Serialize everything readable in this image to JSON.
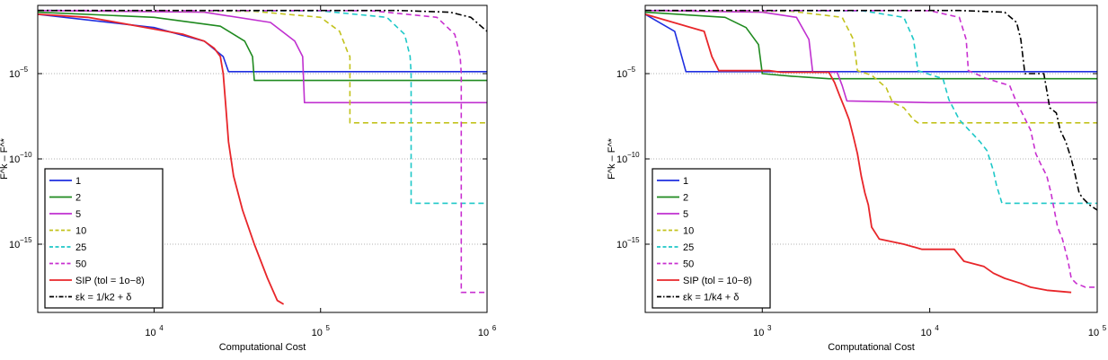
{
  "colors": {
    "s1": "#1f2fe0",
    "s2": "#1f8a1f",
    "s5": "#c030d0",
    "s10": "#c2c21c",
    "s25": "#1ec8c8",
    "s50": "#c830d0",
    "sip": "#e8262a",
    "eps": "#000000"
  },
  "chart_data": [
    {
      "type": "line",
      "xlabel": "Computational Cost",
      "ylabel": "F^k – F^*",
      "xscale": "log",
      "yscale": "log",
      "xlim": [
        2000,
        1000000
      ],
      "ylim": [
        1e-19,
        0.1
      ],
      "xticks": [
        {
          "label": "10",
          "exp": "4",
          "value": 10000
        },
        {
          "label": "10",
          "exp": "5",
          "value": 100000
        },
        {
          "label": "10",
          "exp": "6",
          "value": 1000000
        }
      ],
      "yticks": [
        {
          "label": "10",
          "exp": "−5",
          "value": 1e-05
        },
        {
          "label": "10",
          "exp": "−10",
          "value": 1e-10
        },
        {
          "label": "10",
          "exp": "−15",
          "value": 1e-15
        }
      ],
      "grid": "horizontal dotted",
      "legend_position": "bottom-left",
      "legend": [
        "1",
        "2",
        "5",
        "10",
        "25",
        "50",
        "SIP (tol = 1o−8)",
        "εk = 1/k2 + δ"
      ],
      "series": [
        {
          "name": "1",
          "style": "solid",
          "points": [
            [
              2000,
              0.03
            ],
            [
              10000,
              0.005
            ],
            [
              20000,
              0.0008
            ],
            [
              26000,
              0.0001
            ],
            [
              28000,
              1.3e-05
            ],
            [
              1000000,
              1.3e-05
            ]
          ]
        },
        {
          "name": "2",
          "style": "solid",
          "points": [
            [
              2000,
              0.04
            ],
            [
              10000,
              0.02
            ],
            [
              25000,
              0.006
            ],
            [
              35000,
              0.0008
            ],
            [
              39000,
              0.0001
            ],
            [
              40000,
              4e-06
            ],
            [
              1000000,
              4e-06
            ]
          ]
        },
        {
          "name": "5",
          "style": "solid",
          "points": [
            [
              2000,
              0.05
            ],
            [
              20000,
              0.04
            ],
            [
              50000,
              0.01
            ],
            [
              70000,
              0.0008
            ],
            [
              78000,
              0.0001
            ],
            [
              80000,
              2e-07
            ],
            [
              1000000,
              2e-07
            ]
          ]
        },
        {
          "name": "10",
          "style": "dashed",
          "points": [
            [
              2000,
              0.05
            ],
            [
              40000,
              0.045
            ],
            [
              100000,
              0.02
            ],
            [
              130000,
              0.003
            ],
            [
              145000,
              0.0002
            ],
            [
              150000,
              0.0001
            ],
            [
              150000,
              1.3e-08
            ],
            [
              1000000,
              1.3e-08
            ]
          ]
        },
        {
          "name": "25",
          "style": "dashed",
          "points": [
            [
              2000,
              0.05
            ],
            [
              100000,
              0.048
            ],
            [
              250000,
              0.02
            ],
            [
              320000,
              0.002
            ],
            [
              345000,
              0.0001
            ],
            [
              350000,
              1e-05
            ],
            [
              350000,
              2.5e-13
            ],
            [
              1000000,
              2.5e-13
            ]
          ]
        },
        {
          "name": "50",
          "style": "dashed",
          "points": [
            [
              2000,
              0.05
            ],
            [
              200000,
              0.049
            ],
            [
              500000,
              0.02
            ],
            [
              640000,
              0.002
            ],
            [
              690000,
              0.0001
            ],
            [
              700000,
              1e-05
            ],
            [
              700000,
              1.5e-18
            ],
            [
              1000000,
              1.5e-18
            ]
          ]
        },
        {
          "name": "SIP (tol = 1o−8)",
          "style": "solid",
          "points": [
            [
              2000,
              0.03
            ],
            [
              4000,
              0.02
            ],
            [
              6000,
              0.01
            ],
            [
              15000,
              0.002
            ],
            [
              20000,
              0.0008
            ],
            [
              23000,
              0.0003
            ],
            [
              25000,
              0.0001
            ],
            [
              26000,
              1e-05
            ],
            [
              27000,
              1e-07
            ],
            [
              28000,
              1e-09
            ],
            [
              30000,
              1e-11
            ],
            [
              34000,
              1e-13
            ],
            [
              40000,
              1e-15
            ],
            [
              48000,
              1e-17
            ],
            [
              55000,
              5e-19
            ],
            [
              60000,
              3e-19
            ]
          ]
        },
        {
          "name": "εk = 1/k2 + δ",
          "style": "dashdot",
          "points": [
            [
              2000,
              0.05
            ],
            [
              300000,
              0.05
            ],
            [
              600000,
              0.04
            ],
            [
              800000,
              0.02
            ],
            [
              920000,
              0.006
            ],
            [
              1000000,
              0.003
            ]
          ]
        }
      ]
    },
    {
      "type": "line",
      "xlabel": "Computational Cost",
      "ylabel": "F^k – F^*",
      "xscale": "log",
      "yscale": "log",
      "xlim": [
        200,
        100000
      ],
      "ylim": [
        1e-19,
        0.1
      ],
      "xticks": [
        {
          "label": "10",
          "exp": "3",
          "value": 1000
        },
        {
          "label": "10",
          "exp": "4",
          "value": 10000
        },
        {
          "label": "10",
          "exp": "5",
          "value": 100000
        }
      ],
      "yticks": [
        {
          "label": "10",
          "exp": "−5",
          "value": 1e-05
        },
        {
          "label": "10",
          "exp": "−10",
          "value": 1e-10
        },
        {
          "label": "10",
          "exp": "−15",
          "value": 1e-15
        }
      ],
      "grid": "horizontal dotted",
      "legend_position": "bottom-left",
      "legend": [
        "1",
        "2",
        "5",
        "10",
        "25",
        "50",
        "SIP (tol = 10−8)",
        "εk = 1/k4 + δ"
      ],
      "series": [
        {
          "name": "1",
          "style": "solid",
          "points": [
            [
              200,
              0.03
            ],
            [
              300,
              0.003
            ],
            [
              350,
              1.3e-05
            ],
            [
              100000,
              1.3e-05
            ]
          ]
        },
        {
          "name": "2",
          "style": "solid",
          "points": [
            [
              200,
              0.04
            ],
            [
              600,
              0.02
            ],
            [
              800,
              0.005
            ],
            [
              950,
              0.0005
            ],
            [
              1000,
              1e-05
            ],
            [
              1500,
              7e-06
            ],
            [
              2500,
              5e-06
            ],
            [
              100000,
              5e-06
            ]
          ]
        },
        {
          "name": "5",
          "style": "solid",
          "points": [
            [
              200,
              0.05
            ],
            [
              1000,
              0.04
            ],
            [
              1600,
              0.02
            ],
            [
              1900,
              0.001
            ],
            [
              2000,
              1.2e-05
            ],
            [
              2800,
              1.2e-05
            ],
            [
              3000,
              2e-06
            ],
            [
              3200,
              2.5e-07
            ],
            [
              10000,
              2e-07
            ],
            [
              100000,
              2e-07
            ]
          ]
        },
        {
          "name": "10",
          "style": "dashed",
          "points": [
            [
              200,
              0.05
            ],
            [
              1500,
              0.045
            ],
            [
              3000,
              0.02
            ],
            [
              3500,
              0.001
            ],
            [
              3700,
              1.5e-05
            ],
            [
              4500,
              8e-06
            ],
            [
              5500,
              1.5e-06
            ],
            [
              6000,
              2e-07
            ],
            [
              7000,
              1e-07
            ],
            [
              8000,
              2e-08
            ],
            [
              8500,
              1.3e-08
            ],
            [
              100000,
              1.3e-08
            ]
          ]
        },
        {
          "name": "25",
          "style": "dashed",
          "points": [
            [
              200,
              0.05
            ],
            [
              4000,
              0.048
            ],
            [
              7000,
              0.02
            ],
            [
              8000,
              0.001
            ],
            [
              8500,
              1.5e-05
            ],
            [
              12000,
              5e-06
            ],
            [
              13000,
              3e-07
            ],
            [
              15000,
              2e-08
            ],
            [
              20000,
              1e-09
            ],
            [
              22000,
              3e-10
            ],
            [
              24000,
              2e-11
            ],
            [
              25000,
              3e-12
            ],
            [
              27000,
              2.5e-13
            ],
            [
              100000,
              2.5e-13
            ]
          ]
        },
        {
          "name": "50",
          "style": "dashed",
          "points": [
            [
              200,
              0.05
            ],
            [
              10000,
              0.049
            ],
            [
              15000,
              0.02
            ],
            [
              16500,
              0.001
            ],
            [
              17000,
              1.5e-05
            ],
            [
              22000,
              5e-06
            ],
            [
              30000,
              2e-06
            ],
            [
              33000,
              2e-07
            ],
            [
              36000,
              4e-08
            ],
            [
              40000,
              5e-09
            ],
            [
              43000,
              2e-10
            ],
            [
              46000,
              5e-11
            ],
            [
              50000,
              1e-11
            ],
            [
              53000,
              1e-12
            ],
            [
              58000,
              1e-14
            ],
            [
              62000,
              2e-15
            ],
            [
              67000,
              1e-16
            ],
            [
              70000,
              1e-17
            ],
            [
              75000,
              5e-18
            ],
            [
              85000,
              3e-18
            ],
            [
              100000,
              3e-18
            ]
          ]
        },
        {
          "name": "SIP (tol = 10−8)",
          "style": "solid",
          "points": [
            [
              200,
              0.03
            ],
            [
              450,
              0.003
            ],
            [
              500,
              0.0001
            ],
            [
              550,
              1.5e-05
            ],
            [
              1100,
              1.5e-05
            ],
            [
              1300,
              1.2e-05
            ],
            [
              2500,
              1.2e-05
            ],
            [
              2700,
              3e-06
            ],
            [
              2900,
              5e-07
            ],
            [
              3100,
              1e-07
            ],
            [
              3300,
              2e-08
            ],
            [
              3500,
              2e-09
            ],
            [
              3700,
              2e-10
            ],
            [
              3900,
              1e-11
            ],
            [
              4100,
              1e-12
            ],
            [
              4300,
              2e-13
            ],
            [
              4500,
              1e-14
            ],
            [
              5000,
              2e-15
            ],
            [
              7000,
              1e-15
            ],
            [
              9000,
              5e-16
            ],
            [
              14000,
              5e-16
            ],
            [
              16000,
              1e-16
            ],
            [
              21000,
              5e-17
            ],
            [
              24000,
              2e-17
            ],
            [
              28000,
              1e-17
            ],
            [
              35000,
              5e-18
            ],
            [
              40000,
              3e-18
            ],
            [
              50000,
              2e-18
            ],
            [
              70000,
              1.5e-18
            ]
          ]
        },
        {
          "name": "εk = 1/k4 + δ",
          "style": "dashdot",
          "points": [
            [
              200,
              0.05
            ],
            [
              15000,
              0.05
            ],
            [
              28000,
              0.04
            ],
            [
              33000,
              0.01
            ],
            [
              35000,
              0.001
            ],
            [
              37000,
              1e-05
            ],
            [
              48000,
              1e-05
            ],
            [
              50000,
              1e-06
            ],
            [
              52000,
              1e-07
            ],
            [
              57000,
              5e-08
            ],
            [
              60000,
              5e-09
            ],
            [
              65000,
              1e-09
            ],
            [
              70000,
              1e-10
            ],
            [
              73000,
              2e-11
            ],
            [
              78000,
              1e-12
            ],
            [
              82000,
              5e-13
            ],
            [
              90000,
              2e-13
            ],
            [
              100000,
              1e-13
            ]
          ]
        }
      ]
    }
  ]
}
